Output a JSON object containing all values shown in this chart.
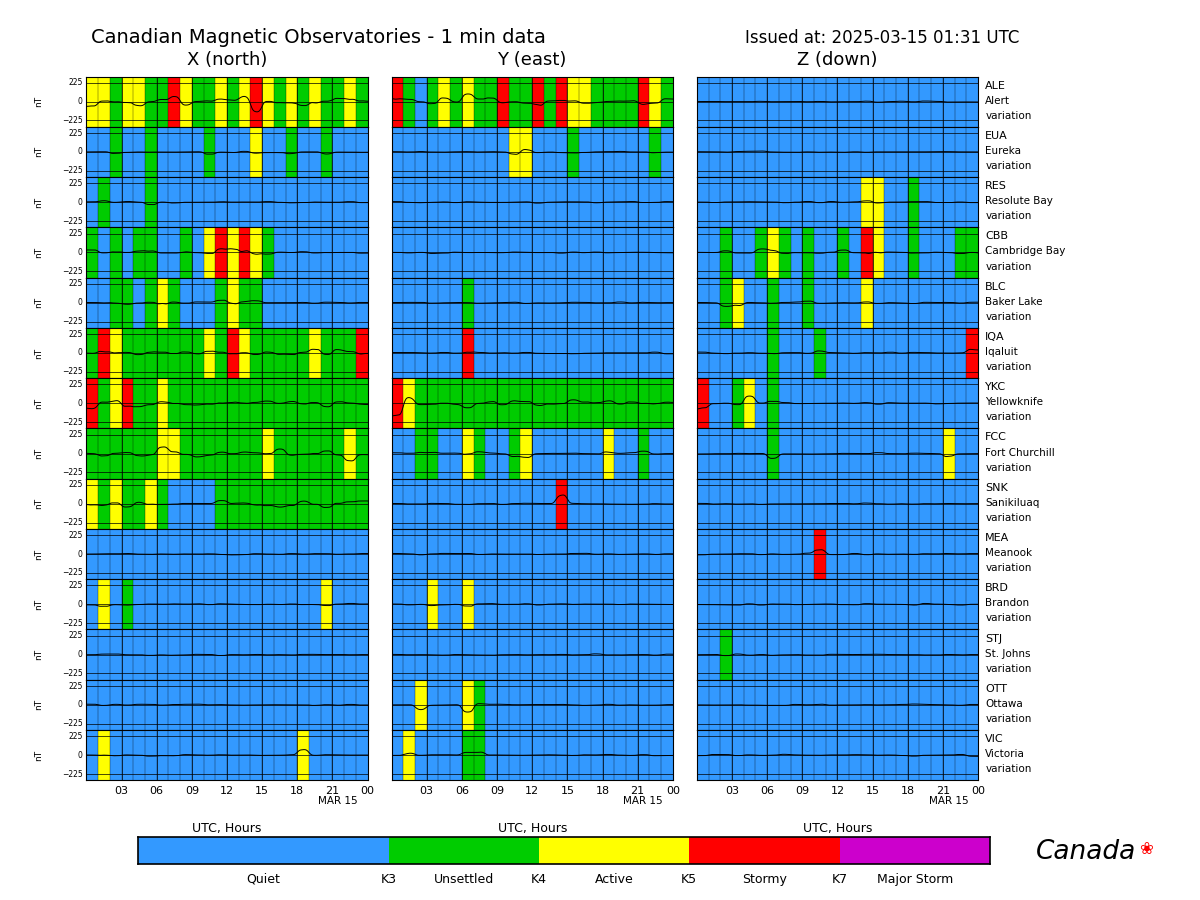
{
  "title_left": "Canadian Magnetic Observatories - 1 min data",
  "title_right": "Issued at: 2025-03-15 01:31 UTC",
  "col_titles": [
    "X (north)",
    "Y (east)",
    "Z (down)"
  ],
  "observatories": [
    {
      "code": "ALE",
      "name": "Alert",
      "label": "variation"
    },
    {
      "code": "EUA",
      "name": "Eureka",
      "label": "variation"
    },
    {
      "code": "RES",
      "name": "Resolute Bay",
      "label": "variation"
    },
    {
      "code": "CBB",
      "name": "Cambridge Bay",
      "label": "variation"
    },
    {
      "code": "BLC",
      "name": "Baker Lake",
      "label": "variation"
    },
    {
      "code": "IQA",
      "name": "Iqaluit",
      "label": "variation"
    },
    {
      "code": "YKC",
      "name": "Yellowknife",
      "label": "variation"
    },
    {
      "code": "FCC",
      "name": "Fort Churchill",
      "label": "variation"
    },
    {
      "code": "SNK",
      "name": "Sanikiluaq",
      "label": "variation"
    },
    {
      "code": "MEA",
      "name": "Meanook",
      "label": "variation"
    },
    {
      "code": "BRD",
      "name": "Brandon",
      "label": "variation"
    },
    {
      "code": "STJ",
      "name": "St. Johns",
      "label": "variation"
    },
    {
      "code": "OTT",
      "name": "Ottawa",
      "label": "variation"
    },
    {
      "code": "VIC",
      "name": "Victoria",
      "label": "variation"
    }
  ],
  "k_color_map": {
    "0": 1,
    "1": 1,
    "2": 1,
    "3": 3,
    "4": 4,
    "5": 5,
    "6": 5,
    "7": 7,
    "8": 7,
    "9": 7
  },
  "colors": {
    "quiet": "#3399ff",
    "unsettled": "#00cc00",
    "active": "#ffff00",
    "stormy": "#ff0000",
    "major": "#cc00cc"
  },
  "xtick_hours": [
    3,
    6,
    9,
    12,
    15,
    18,
    21,
    24
  ],
  "xtick_labels": [
    "03",
    "06",
    "09",
    "12",
    "15",
    "18",
    "21",
    "00"
  ],
  "xlabel": "UTC, Hours",
  "xlabel_extra": "MAR 15",
  "ylabel": "nT",
  "patterns_X": [
    [
      4,
      4,
      3,
      4,
      4,
      3,
      3,
      5,
      4,
      3,
      3,
      4,
      3,
      4,
      5,
      4,
      3,
      4,
      3,
      4,
      3,
      3,
      4,
      3
    ],
    [
      2,
      2,
      3,
      2,
      2,
      3,
      2,
      2,
      2,
      2,
      3,
      2,
      2,
      2,
      4,
      2,
      2,
      3,
      2,
      2,
      3,
      2,
      2,
      2
    ],
    [
      2,
      3,
      2,
      2,
      2,
      3,
      2,
      2,
      2,
      2,
      2,
      2,
      2,
      2,
      2,
      2,
      2,
      2,
      2,
      2,
      2,
      2,
      2,
      2
    ],
    [
      3,
      2,
      3,
      2,
      3,
      3,
      2,
      2,
      3,
      2,
      4,
      5,
      4,
      5,
      4,
      3,
      2,
      2,
      2,
      2,
      2,
      2,
      2,
      2
    ],
    [
      2,
      2,
      3,
      3,
      2,
      3,
      4,
      3,
      2,
      2,
      2,
      3,
      4,
      3,
      3,
      2,
      2,
      2,
      2,
      2,
      2,
      2,
      2,
      2
    ],
    [
      3,
      5,
      4,
      3,
      3,
      3,
      3,
      3,
      3,
      3,
      4,
      3,
      5,
      4,
      3,
      3,
      3,
      3,
      3,
      4,
      3,
      3,
      3,
      5
    ],
    [
      5,
      3,
      4,
      5,
      3,
      3,
      4,
      3,
      3,
      3,
      3,
      3,
      3,
      3,
      3,
      3,
      3,
      3,
      3,
      3,
      3,
      3,
      3,
      3
    ],
    [
      3,
      3,
      3,
      3,
      3,
      3,
      4,
      4,
      3,
      3,
      3,
      3,
      3,
      3,
      3,
      4,
      3,
      3,
      3,
      3,
      3,
      3,
      4,
      3
    ],
    [
      4,
      3,
      4,
      3,
      3,
      4,
      3,
      2,
      2,
      2,
      2,
      3,
      3,
      3,
      3,
      3,
      3,
      3,
      3,
      3,
      3,
      3,
      3,
      3
    ],
    [
      2,
      2,
      2,
      2,
      2,
      2,
      2,
      2,
      2,
      2,
      2,
      2,
      2,
      2,
      2,
      2,
      2,
      2,
      2,
      2,
      2,
      2,
      2,
      2
    ],
    [
      2,
      4,
      2,
      3,
      2,
      2,
      2,
      2,
      2,
      2,
      2,
      2,
      2,
      2,
      2,
      2,
      2,
      2,
      2,
      2,
      4,
      2,
      2,
      2
    ],
    [
      2,
      2,
      2,
      2,
      2,
      2,
      2,
      2,
      2,
      2,
      2,
      2,
      2,
      2,
      2,
      2,
      2,
      2,
      2,
      2,
      2,
      2,
      2,
      2
    ],
    [
      2,
      2,
      2,
      2,
      2,
      2,
      2,
      2,
      2,
      2,
      2,
      2,
      2,
      2,
      2,
      2,
      2,
      2,
      2,
      2,
      2,
      2,
      2,
      2
    ],
    [
      2,
      4,
      2,
      2,
      2,
      2,
      2,
      2,
      2,
      2,
      2,
      2,
      2,
      2,
      2,
      2,
      2,
      2,
      4,
      2,
      2,
      2,
      2,
      2
    ]
  ],
  "patterns_Y": [
    [
      5,
      3,
      2,
      3,
      4,
      3,
      4,
      3,
      3,
      5,
      3,
      3,
      5,
      3,
      5,
      4,
      4,
      3,
      3,
      3,
      3,
      5,
      4,
      3
    ],
    [
      2,
      2,
      2,
      2,
      2,
      2,
      2,
      2,
      2,
      2,
      4,
      4,
      2,
      2,
      2,
      3,
      2,
      2,
      2,
      2,
      2,
      2,
      3,
      2
    ],
    [
      2,
      2,
      2,
      2,
      2,
      2,
      2,
      2,
      2,
      2,
      2,
      2,
      2,
      2,
      2,
      2,
      2,
      2,
      2,
      2,
      2,
      2,
      2,
      2
    ],
    [
      2,
      2,
      2,
      2,
      2,
      2,
      2,
      2,
      2,
      2,
      2,
      2,
      2,
      2,
      2,
      2,
      2,
      2,
      2,
      2,
      2,
      2,
      2,
      2
    ],
    [
      2,
      2,
      2,
      2,
      2,
      2,
      3,
      2,
      2,
      2,
      2,
      2,
      2,
      2,
      2,
      2,
      2,
      2,
      2,
      2,
      2,
      2,
      2,
      2
    ],
    [
      2,
      2,
      2,
      2,
      2,
      2,
      5,
      2,
      2,
      2,
      2,
      2,
      2,
      2,
      2,
      2,
      2,
      2,
      2,
      2,
      2,
      2,
      2,
      2
    ],
    [
      5,
      4,
      3,
      3,
      3,
      3,
      3,
      3,
      3,
      3,
      3,
      3,
      3,
      3,
      3,
      3,
      3,
      3,
      3,
      3,
      3,
      3,
      3,
      3
    ],
    [
      2,
      2,
      3,
      3,
      2,
      2,
      4,
      3,
      2,
      2,
      3,
      4,
      2,
      2,
      2,
      2,
      2,
      2,
      4,
      2,
      2,
      3,
      2,
      2
    ],
    [
      2,
      2,
      2,
      2,
      2,
      2,
      2,
      2,
      2,
      2,
      2,
      2,
      2,
      2,
      5,
      2,
      2,
      2,
      2,
      2,
      2,
      2,
      2,
      2
    ],
    [
      2,
      2,
      2,
      2,
      2,
      2,
      2,
      2,
      2,
      2,
      2,
      2,
      2,
      2,
      2,
      2,
      2,
      2,
      2,
      2,
      2,
      2,
      2,
      2
    ],
    [
      2,
      2,
      2,
      4,
      2,
      2,
      4,
      2,
      2,
      2,
      2,
      2,
      2,
      2,
      2,
      2,
      2,
      2,
      2,
      2,
      2,
      2,
      2,
      2
    ],
    [
      2,
      2,
      2,
      2,
      2,
      2,
      2,
      2,
      2,
      2,
      2,
      2,
      2,
      2,
      2,
      2,
      2,
      2,
      2,
      2,
      2,
      2,
      2,
      2
    ],
    [
      2,
      2,
      4,
      2,
      2,
      2,
      4,
      3,
      2,
      2,
      2,
      2,
      2,
      2,
      2,
      2,
      2,
      2,
      2,
      2,
      2,
      2,
      2,
      2
    ],
    [
      2,
      4,
      2,
      2,
      2,
      2,
      3,
      3,
      2,
      2,
      2,
      2,
      2,
      2,
      2,
      2,
      2,
      2,
      2,
      2,
      2,
      2,
      2,
      2
    ]
  ],
  "patterns_Z": [
    [
      2,
      2,
      2,
      2,
      2,
      2,
      2,
      2,
      2,
      2,
      2,
      2,
      2,
      2,
      2,
      2,
      2,
      2,
      2,
      2,
      2,
      2,
      2,
      2
    ],
    [
      2,
      2,
      2,
      2,
      2,
      2,
      2,
      2,
      2,
      2,
      2,
      2,
      2,
      2,
      2,
      2,
      2,
      2,
      2,
      2,
      2,
      2,
      2,
      2
    ],
    [
      2,
      2,
      2,
      2,
      2,
      2,
      2,
      2,
      2,
      2,
      2,
      2,
      2,
      2,
      4,
      4,
      2,
      2,
      3,
      2,
      2,
      2,
      2,
      2
    ],
    [
      2,
      2,
      3,
      2,
      2,
      3,
      4,
      3,
      2,
      3,
      2,
      2,
      3,
      2,
      5,
      4,
      2,
      2,
      3,
      2,
      2,
      2,
      3,
      3
    ],
    [
      2,
      2,
      3,
      4,
      2,
      2,
      3,
      2,
      2,
      3,
      2,
      2,
      2,
      2,
      4,
      2,
      2,
      2,
      2,
      2,
      2,
      2,
      2,
      2
    ],
    [
      2,
      2,
      2,
      2,
      2,
      2,
      3,
      2,
      2,
      2,
      3,
      2,
      2,
      2,
      2,
      2,
      2,
      2,
      2,
      2,
      2,
      2,
      2,
      5
    ],
    [
      5,
      2,
      2,
      3,
      4,
      2,
      3,
      2,
      2,
      2,
      2,
      2,
      2,
      2,
      2,
      2,
      2,
      2,
      2,
      2,
      2,
      2,
      2,
      2
    ],
    [
      2,
      2,
      2,
      2,
      2,
      2,
      3,
      2,
      2,
      2,
      2,
      2,
      2,
      2,
      2,
      2,
      2,
      2,
      2,
      2,
      2,
      4,
      2,
      2
    ],
    [
      2,
      2,
      2,
      2,
      2,
      2,
      2,
      2,
      2,
      2,
      2,
      2,
      2,
      2,
      2,
      2,
      2,
      2,
      2,
      2,
      2,
      2,
      2,
      2
    ],
    [
      2,
      2,
      2,
      2,
      2,
      2,
      2,
      2,
      2,
      2,
      5,
      2,
      2,
      2,
      2,
      2,
      2,
      2,
      2,
      2,
      2,
      2,
      2,
      2
    ],
    [
      2,
      2,
      2,
      2,
      2,
      2,
      2,
      2,
      2,
      2,
      2,
      2,
      2,
      2,
      2,
      2,
      2,
      2,
      2,
      2,
      2,
      2,
      2,
      2
    ],
    [
      2,
      2,
      3,
      2,
      2,
      2,
      2,
      2,
      2,
      2,
      2,
      2,
      2,
      2,
      2,
      2,
      2,
      2,
      2,
      2,
      2,
      2,
      2,
      2
    ],
    [
      2,
      2,
      2,
      2,
      2,
      2,
      2,
      2,
      2,
      2,
      2,
      2,
      2,
      2,
      2,
      2,
      2,
      2,
      2,
      2,
      2,
      2,
      2,
      2
    ],
    [
      2,
      2,
      2,
      2,
      2,
      2,
      2,
      2,
      2,
      2,
      2,
      2,
      2,
      2,
      2,
      2,
      2,
      2,
      2,
      2,
      2,
      2,
      2,
      2
    ]
  ],
  "wf_seeds_X": [
    11,
    22,
    33,
    44,
    55,
    66,
    77,
    88,
    99,
    110,
    121,
    132,
    143,
    154
  ],
  "wf_seeds_Y": [
    211,
    222,
    233,
    244,
    255,
    266,
    277,
    288,
    299,
    310,
    321,
    332,
    343,
    354
  ],
  "wf_seeds_Z": [
    411,
    422,
    433,
    444,
    455,
    466,
    477,
    488,
    499,
    510,
    521,
    532,
    543,
    554
  ]
}
